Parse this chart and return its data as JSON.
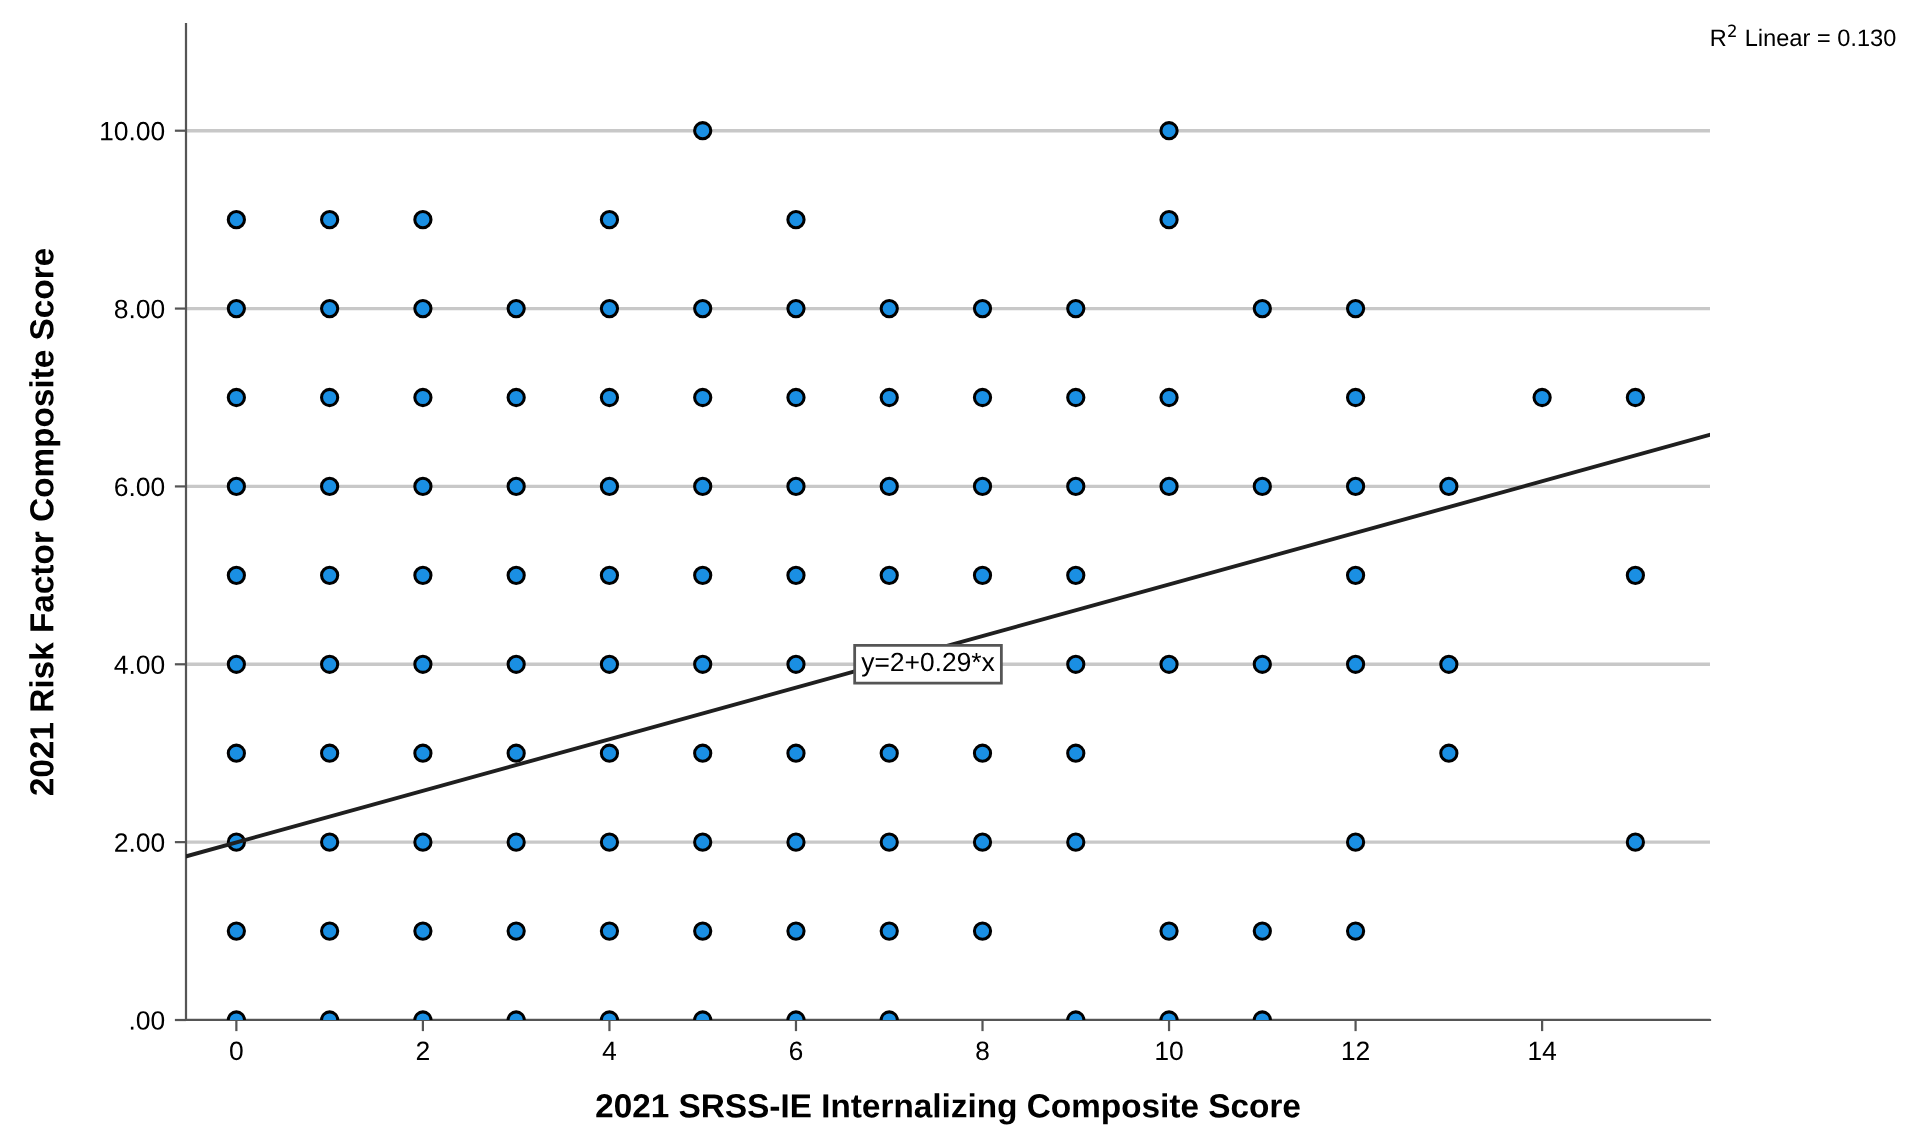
{
  "chart_data": {
    "type": "scatter",
    "xlabel": "2021 SRSS-IE Internalizing Composite Score",
    "ylabel": "2021 Risk Factor Composite Score",
    "xlim": [
      -0.54,
      15.8
    ],
    "ylim": [
      0,
      11.2
    ],
    "xticks": [
      0,
      2,
      4,
      6,
      8,
      10,
      12,
      14
    ],
    "yticks": [
      {
        "value": 0,
        "label": ".00"
      },
      {
        "value": 2,
        "label": "2.00"
      },
      {
        "value": 4,
        "label": "4.00"
      },
      {
        "value": 6,
        "label": "6.00"
      },
      {
        "value": 8,
        "label": "8.00"
      },
      {
        "value": 10,
        "label": "10.00"
      }
    ],
    "grid": "y",
    "marker": "circle",
    "series": [
      {
        "color": "#1a8fe3",
        "x": [
          0,
          0,
          0,
          0,
          0,
          0,
          0,
          0,
          0,
          0,
          1,
          1,
          1,
          1,
          1,
          1,
          1,
          1,
          1,
          1,
          2,
          2,
          2,
          2,
          2,
          2,
          2,
          2,
          2,
          2,
          3,
          3,
          3,
          3,
          3,
          3,
          3,
          3,
          3,
          4,
          4,
          4,
          4,
          4,
          4,
          4,
          4,
          4,
          4,
          5,
          5,
          5,
          5,
          5,
          5,
          5,
          5,
          5,
          5,
          6,
          6,
          6,
          6,
          6,
          6,
          6,
          6,
          6,
          6,
          7,
          7,
          7,
          7,
          7,
          7,
          7,
          7,
          8,
          8,
          8,
          8,
          8,
          8,
          8,
          9,
          9,
          9,
          9,
          9,
          9,
          9,
          9,
          10,
          10,
          10,
          10,
          10,
          10,
          10,
          11,
          11,
          11,
          11,
          11,
          12,
          12,
          12,
          12,
          12,
          12,
          12,
          13,
          13,
          13,
          14,
          15,
          15,
          15
        ],
        "values": [
          0,
          1,
          2,
          3,
          4,
          5,
          6,
          7,
          8,
          9,
          0,
          1,
          2,
          3,
          4,
          5,
          6,
          7,
          8,
          9,
          0,
          1,
          2,
          3,
          4,
          5,
          6,
          7,
          8,
          9,
          0,
          1,
          2,
          3,
          4,
          5,
          6,
          7,
          8,
          0,
          1,
          2,
          3,
          4,
          5,
          6,
          7,
          8,
          9,
          0,
          1,
          2,
          3,
          4,
          5,
          6,
          7,
          8,
          10,
          0,
          1,
          2,
          3,
          4,
          5,
          6,
          7,
          8,
          9,
          0,
          1,
          2,
          3,
          5,
          6,
          7,
          8,
          1,
          2,
          3,
          5,
          6,
          7,
          8,
          0,
          2,
          3,
          4,
          5,
          6,
          7,
          8,
          0,
          1,
          4,
          6,
          7,
          9,
          10,
          0,
          1,
          4,
          6,
          8,
          1,
          2,
          4,
          5,
          6,
          7,
          8,
          3,
          4,
          6,
          7,
          2,
          5,
          7
        ]
      },
      {
        "type": "line",
        "color": "#1f1f1f",
        "marker": "none",
        "line_style": "solid",
        "x": [
          -0.54,
          15.8
        ],
        "values": [
          1.84,
          6.58
        ]
      }
    ],
    "annotations": [
      {
        "text": "y=2+0.29*x",
        "x": 6.7,
        "y": 4.0
      },
      "R$^{2}$ Linear = 0.130"
    ]
  }
}
